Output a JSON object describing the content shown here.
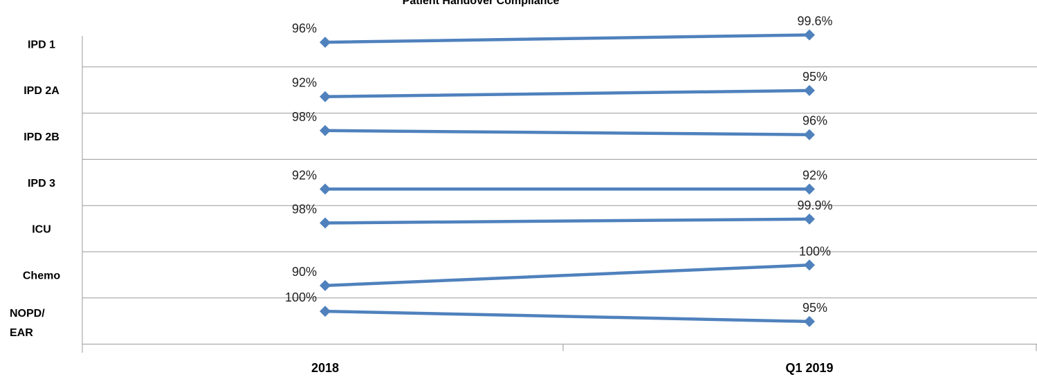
{
  "chart_data": {
    "type": "line",
    "title": "Patient Handover Compliance",
    "categories": [
      "2018",
      "Q1 2019"
    ],
    "series": [
      {
        "name": "IPD 1",
        "values": [
          96,
          99.6
        ],
        "labels": [
          "96%",
          "99.6%"
        ]
      },
      {
        "name": "IPD 2A",
        "values": [
          92,
          95
        ],
        "labels": [
          "92%",
          "95%"
        ]
      },
      {
        "name": "IPD 2B",
        "values": [
          98,
          96
        ],
        "labels": [
          "98%",
          "96%"
        ]
      },
      {
        "name": "IPD 3",
        "values": [
          92,
          92
        ],
        "labels": [
          "92%",
          "92%"
        ]
      },
      {
        "name": "ICU",
        "values": [
          98,
          99.9
        ],
        "labels": [
          "98%",
          "99.9%"
        ]
      },
      {
        "name": "Chemo",
        "values": [
          90,
          100
        ],
        "labels": [
          "90%",
          "100%"
        ]
      },
      {
        "name": "NOPD/ EAR",
        "values": [
          100,
          95
        ],
        "labels": [
          "100%",
          "95%"
        ]
      }
    ],
    "unit": "%",
    "grid": true,
    "line_color": "#4F81BD",
    "marker": "diamond",
    "legend": "none"
  }
}
